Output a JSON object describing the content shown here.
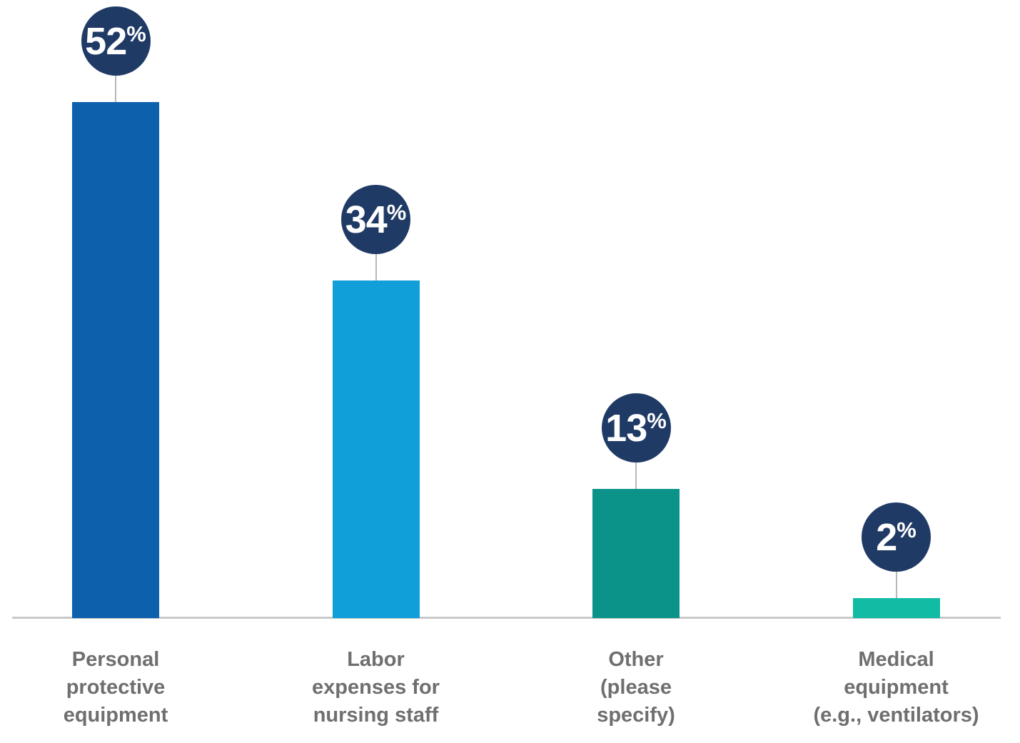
{
  "chart_data": {
    "type": "bar",
    "title": "",
    "xlabel": "",
    "ylabel": "",
    "categories": [
      "Personal protective equipment",
      "Labor expenses for nursing staff",
      "Other (please specify)",
      "Medical equipment (e.g., ventilators)"
    ],
    "category_lines": [
      [
        "Personal",
        "protective",
        "equipment"
      ],
      [
        "Labor",
        "expenses for",
        "nursing staff"
      ],
      [
        "Other",
        "(please",
        "specify)"
      ],
      [
        "Medical",
        "equipment",
        "(e.g., ventilators)"
      ]
    ],
    "values": [
      52,
      34,
      13,
      2
    ],
    "unit": "%",
    "data_labels": [
      "52%",
      "34%",
      "13%",
      "2%"
    ],
    "bar_colors": [
      "#0d60ac",
      "#119fd9",
      "#0b9389",
      "#12bba3"
    ],
    "bubble_color": "#203a66",
    "bubble_text_color": "#ffffff",
    "label_color": "#6f6f6f",
    "axis_line_color": "#c9c9c9",
    "connector_color": "#b8b8b8",
    "ylim": [
      0,
      62
    ],
    "grid": "off",
    "legend": "none",
    "y_axis_visible": false,
    "x_axis_line_visible": true
  }
}
